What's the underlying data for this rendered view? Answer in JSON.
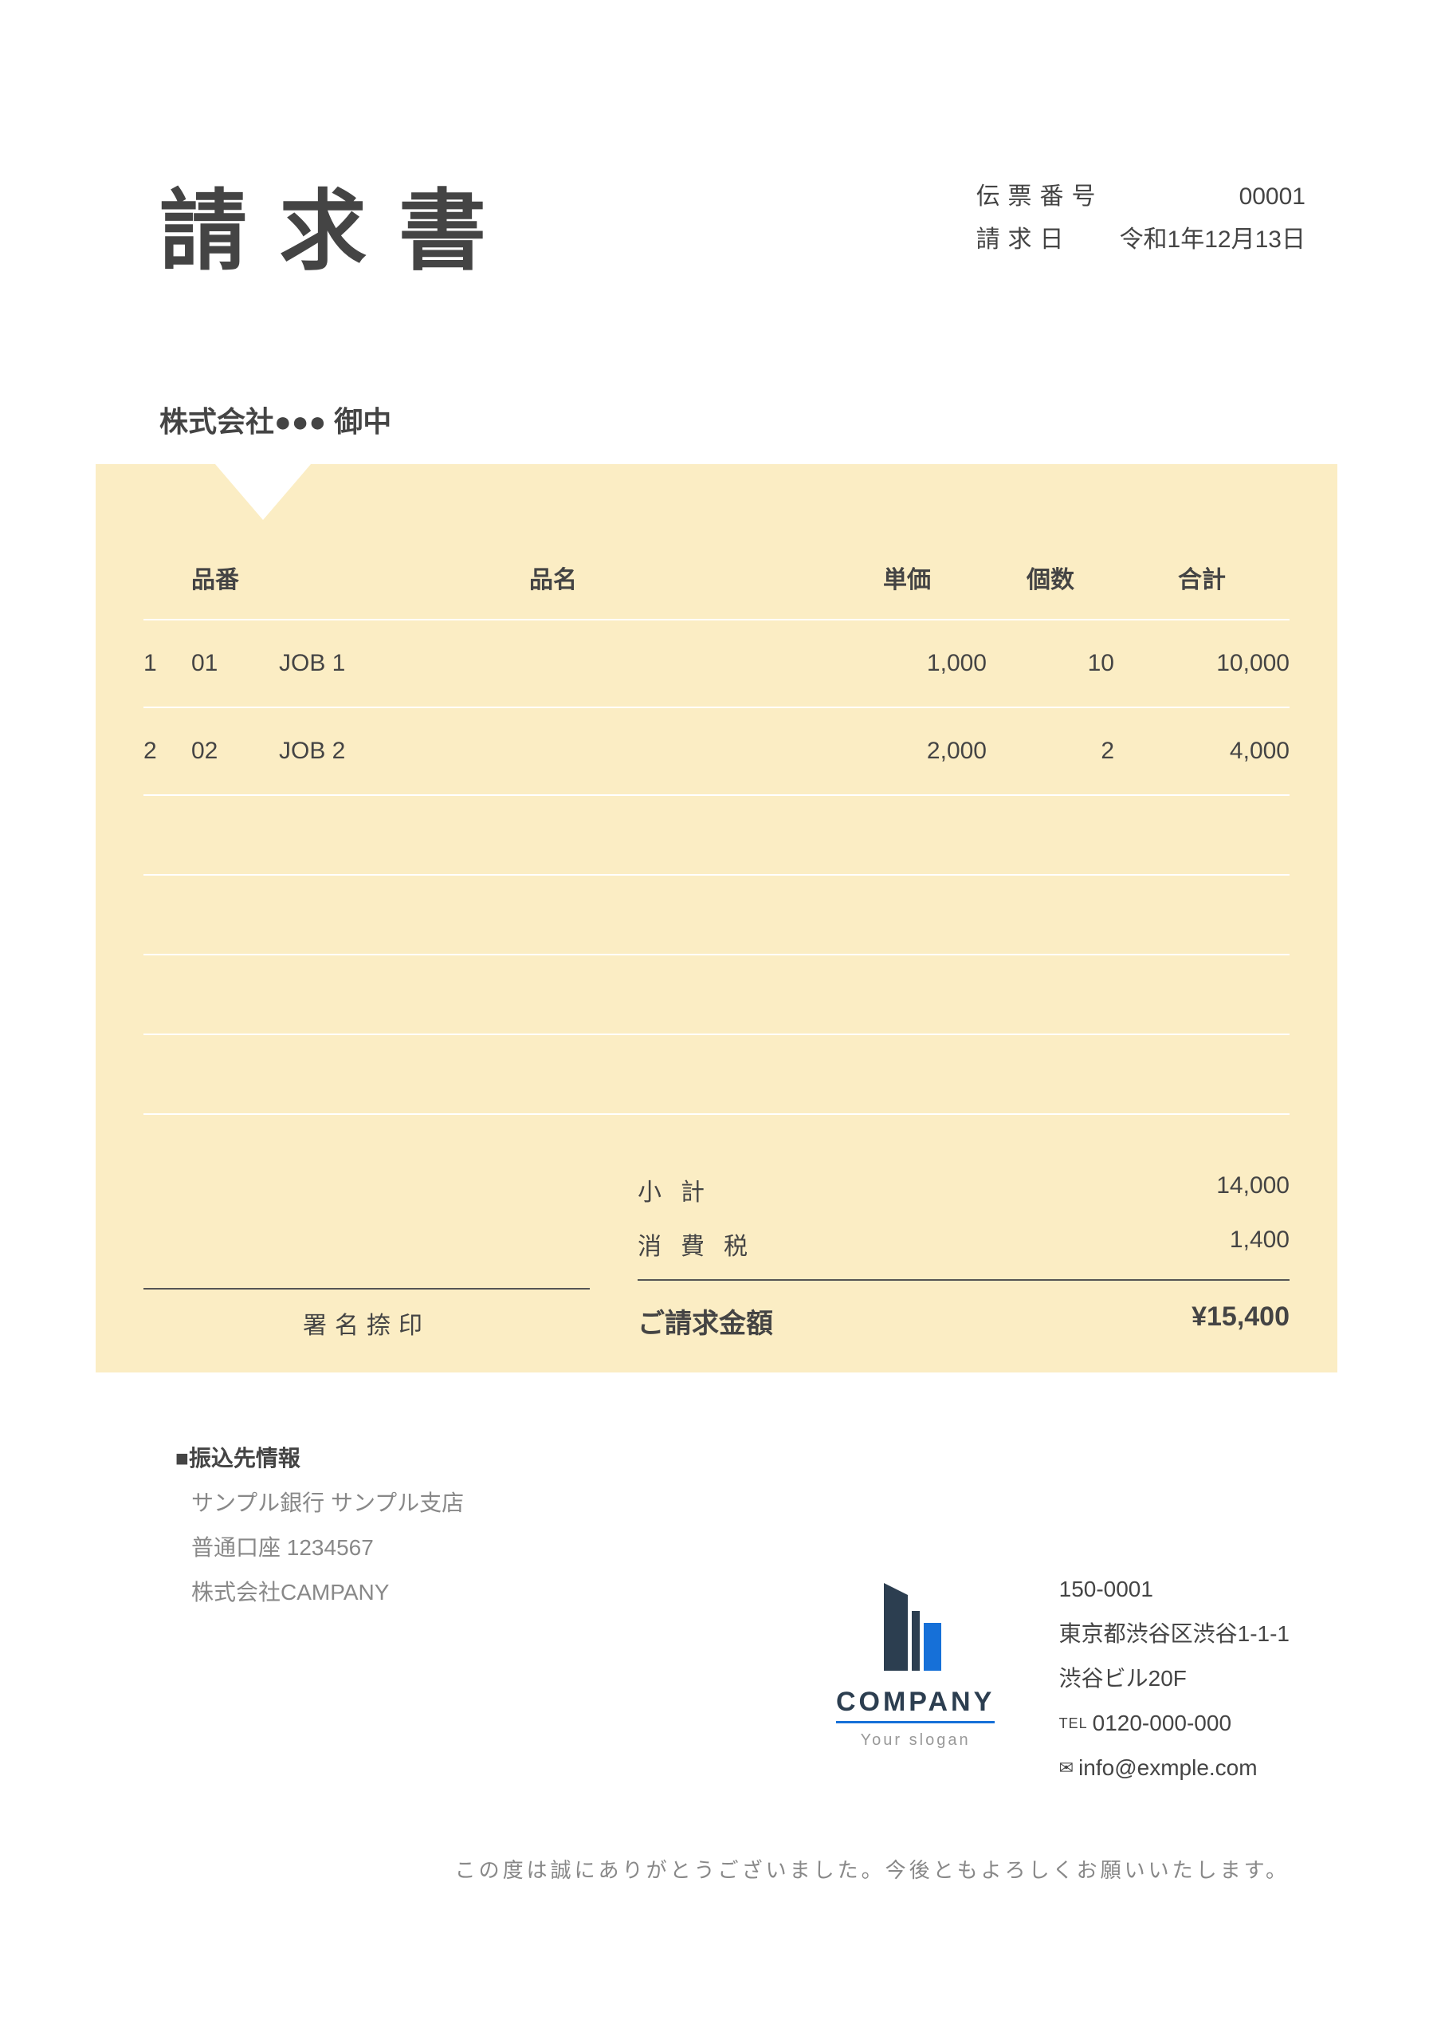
{
  "colors": {
    "panel_bg": "#fbedc4",
    "text": "#444444",
    "muted": "#888888",
    "divider": "#555555",
    "logo_dark": "#2c3e50",
    "logo_blue": "#1670d8",
    "page_bg": "#ffffff"
  },
  "header": {
    "title": "請求書",
    "slip_no_label": "伝票番号",
    "slip_no_value": "00001",
    "date_label": "請求日",
    "date_value": "令和1年12月13日"
  },
  "recipient": "株式会社●●● 御中",
  "table": {
    "headers": {
      "code": "品番",
      "name": "品名",
      "price": "単価",
      "qty": "個数",
      "total": "合計"
    },
    "rows": [
      {
        "idx": "1",
        "code": "01",
        "name": "JOB 1",
        "price": "1,000",
        "qty": "10",
        "total": "10,000"
      },
      {
        "idx": "2",
        "code": "02",
        "name": "JOB 2",
        "price": "2,000",
        "qty": "2",
        "total": "4,000"
      }
    ],
    "empty_rows": 4
  },
  "totals": {
    "subtotal_label": "小計",
    "subtotal_value": "14,000",
    "tax_label": "消費税",
    "tax_value": "1,400",
    "grand_label": "ご請求金額",
    "grand_value": "¥15,400"
  },
  "signature_label": "署名捺印",
  "bank": {
    "title": "■振込先情報",
    "lines": [
      "サンプル銀行 サンプル支店",
      "普通口座 1234567",
      "株式会社CAMPANY"
    ]
  },
  "company": {
    "name": "COMPANY",
    "slogan": "Your slogan"
  },
  "contact": {
    "postal": "150-0001",
    "address1": "東京都渋谷区渋谷1-1-1",
    "address2": "渋谷ビル20F",
    "tel_prefix": "TEL",
    "tel": "0120-000-000",
    "email": "info@exmple.com"
  },
  "closing": "この度は誠にありがとうございました。今後ともよろしくお願いいたします。"
}
